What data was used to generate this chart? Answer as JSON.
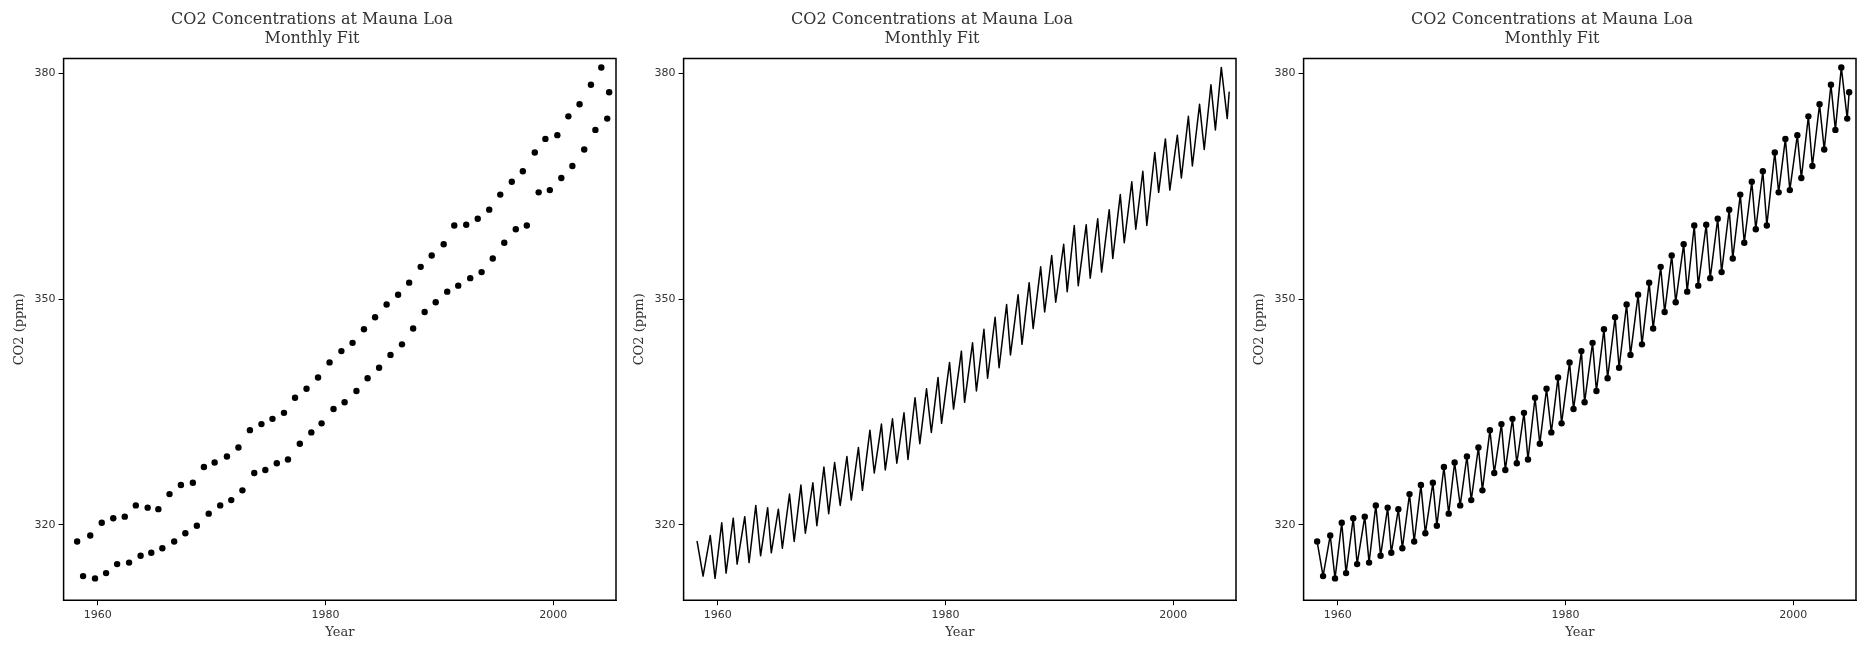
{
  "chart_data": [
    {
      "type": "scatter",
      "title": "CO2 Concentrations at Mauna Loa",
      "subtitle": "Monthly Fit",
      "xlabel": "Year",
      "ylabel": "CO2 (ppm)",
      "xlim": [
        1957,
        2005.5
      ],
      "ylim": [
        310,
        382
      ],
      "xticks": [
        1960,
        1980,
        2000
      ],
      "yticks": [
        320,
        350,
        380
      ],
      "grid": false,
      "legend": false,
      "marker": "circle",
      "x": [
        1958.19,
        1958.71,
        1959.34,
        1959.76,
        1960.35,
        1960.73,
        1961.36,
        1961.7,
        1962.37,
        1962.75,
        1963.34,
        1963.76,
        1964.38,
        1964.7,
        1965.32,
        1965.67,
        1966.3,
        1966.71,
        1967.3,
        1967.69,
        1968.35,
        1968.7,
        1969.32,
        1969.74,
        1970.26,
        1970.75,
        1971.34,
        1971.72,
        1972.35,
        1972.7,
        1973.36,
        1973.74,
        1974.37,
        1974.71,
        1975.34,
        1975.72,
        1976.35,
        1976.7,
        1977.32,
        1977.74,
        1978.33,
        1978.75,
        1979.34,
        1979.65,
        1980.35,
        1980.7,
        1981.39,
        1981.67,
        1982.37,
        1982.71,
        1983.37,
        1983.69,
        1984.35,
        1984.7,
        1985.36,
        1985.7,
        1986.37,
        1986.71,
        1987.34,
        1987.69,
        1988.35,
        1988.7,
        1989.32,
        1989.67,
        1990.37,
        1990.68,
        1991.3,
        1991.65,
        1992.35,
        1992.7,
        1993.36,
        1993.7,
        1994.37,
        1994.68,
        1995.34,
        1995.69,
        1996.35,
        1996.7,
        1997.32,
        1997.67,
        1998.37,
        1998.71,
        1999.3,
        1999.69,
        2000.35,
        2000.7,
        2001.32,
        2001.67,
        2002.3,
        2002.71,
        2003.3,
        2003.69,
        2004.21,
        2004.73,
        2004.9
      ],
      "series": [
        {
          "color": "#000000",
          "values": [
            317.8,
            313.2,
            318.6,
            312.9,
            320.3,
            313.6,
            320.9,
            314.8,
            321.1,
            315.0,
            322.6,
            315.9,
            322.3,
            316.3,
            322.1,
            316.9,
            324.1,
            317.8,
            325.3,
            318.9,
            325.6,
            319.9,
            327.7,
            321.5,
            328.3,
            322.6,
            329.1,
            323.3,
            330.3,
            324.6,
            332.6,
            326.9,
            333.4,
            327.3,
            334.1,
            328.2,
            334.9,
            328.7,
            336.9,
            330.8,
            338.1,
            332.3,
            339.6,
            333.5,
            341.6,
            335.4,
            343.1,
            336.3,
            344.2,
            337.8,
            346.0,
            339.5,
            347.6,
            340.9,
            349.3,
            342.6,
            350.6,
            344.0,
            352.2,
            346.1,
            354.3,
            348.3,
            355.8,
            349.6,
            357.3,
            351.0,
            359.8,
            351.8,
            359.9,
            352.8,
            360.7,
            353.6,
            361.9,
            355.4,
            363.9,
            357.5,
            365.6,
            359.3,
            367.0,
            359.8,
            369.5,
            364.2,
            371.3,
            364.5,
            371.8,
            366.1,
            374.3,
            367.7,
            375.9,
            369.9,
            378.5,
            372.5,
            380.8,
            374.0,
            377.5
          ]
        }
      ]
    },
    {
      "type": "line",
      "title": "CO2 Concentrations at Mauna Loa",
      "subtitle": "Monthly Fit",
      "xlabel": "Year",
      "ylabel": "CO2 (ppm)",
      "xlim": [
        1957,
        2005.5
      ],
      "ylim": [
        310,
        382
      ],
      "xticks": [
        1960,
        1980,
        2000
      ],
      "yticks": [
        320,
        350,
        380
      ],
      "grid": false,
      "legend": false,
      "marker": "none",
      "line_style": "solid",
      "x": [
        1958.19,
        1958.71,
        1959.34,
        1959.76,
        1960.35,
        1960.73,
        1961.36,
        1961.7,
        1962.37,
        1962.75,
        1963.34,
        1963.76,
        1964.38,
        1964.7,
        1965.32,
        1965.67,
        1966.3,
        1966.71,
        1967.3,
        1967.69,
        1968.35,
        1968.7,
        1969.32,
        1969.74,
        1970.26,
        1970.75,
        1971.34,
        1971.72,
        1972.35,
        1972.7,
        1973.36,
        1973.74,
        1974.37,
        1974.71,
        1975.34,
        1975.72,
        1976.35,
        1976.7,
        1977.32,
        1977.74,
        1978.33,
        1978.75,
        1979.34,
        1979.65,
        1980.35,
        1980.7,
        1981.39,
        1981.67,
        1982.37,
        1982.71,
        1983.37,
        1983.69,
        1984.35,
        1984.7,
        1985.36,
        1985.7,
        1986.37,
        1986.71,
        1987.34,
        1987.69,
        1988.35,
        1988.7,
        1989.32,
        1989.67,
        1990.37,
        1990.68,
        1991.3,
        1991.65,
        1992.35,
        1992.7,
        1993.36,
        1993.7,
        1994.37,
        1994.68,
        1995.34,
        1995.69,
        1996.35,
        1996.7,
        1997.32,
        1997.67,
        1998.37,
        1998.71,
        1999.3,
        1999.69,
        2000.35,
        2000.7,
        2001.32,
        2001.67,
        2002.3,
        2002.71,
        2003.3,
        2003.69,
        2004.21,
        2004.73,
        2004.9
      ],
      "series": [
        {
          "color": "#000000",
          "values": [
            317.8,
            313.2,
            318.6,
            312.9,
            320.3,
            313.6,
            320.9,
            314.8,
            321.1,
            315.0,
            322.6,
            315.9,
            322.3,
            316.3,
            322.1,
            316.9,
            324.1,
            317.8,
            325.3,
            318.9,
            325.6,
            319.9,
            327.7,
            321.5,
            328.3,
            322.6,
            329.1,
            323.3,
            330.3,
            324.6,
            332.6,
            326.9,
            333.4,
            327.3,
            334.1,
            328.2,
            334.9,
            328.7,
            336.9,
            330.8,
            338.1,
            332.3,
            339.6,
            333.5,
            341.6,
            335.4,
            343.1,
            336.3,
            344.2,
            337.8,
            346.0,
            339.5,
            347.6,
            340.9,
            349.3,
            342.6,
            350.6,
            344.0,
            352.2,
            346.1,
            354.3,
            348.3,
            355.8,
            349.6,
            357.3,
            351.0,
            359.8,
            351.8,
            359.9,
            352.8,
            360.7,
            353.6,
            361.9,
            355.4,
            363.9,
            357.5,
            365.6,
            359.3,
            367.0,
            359.8,
            369.5,
            364.2,
            371.3,
            364.5,
            371.8,
            366.1,
            374.3,
            367.7,
            375.9,
            369.9,
            378.5,
            372.5,
            380.8,
            374.0,
            377.5
          ]
        }
      ]
    },
    {
      "type": "line",
      "title": "CO2 Concentrations at Mauna Loa",
      "subtitle": "Monthly Fit",
      "xlabel": "Year",
      "ylabel": "CO2 (ppm)",
      "xlim": [
        1957,
        2005.5
      ],
      "ylim": [
        310,
        382
      ],
      "xticks": [
        1960,
        1980,
        2000
      ],
      "yticks": [
        320,
        350,
        380
      ],
      "grid": false,
      "legend": false,
      "marker": "circle",
      "line_style": "solid",
      "x": [
        1958.19,
        1958.71,
        1959.34,
        1959.76,
        1960.35,
        1960.73,
        1961.36,
        1961.7,
        1962.37,
        1962.75,
        1963.34,
        1963.76,
        1964.38,
        1964.7,
        1965.32,
        1965.67,
        1966.3,
        1966.71,
        1967.3,
        1967.69,
        1968.35,
        1968.7,
        1969.32,
        1969.74,
        1970.26,
        1970.75,
        1971.34,
        1971.72,
        1972.35,
        1972.7,
        1973.36,
        1973.74,
        1974.37,
        1974.71,
        1975.34,
        1975.72,
        1976.35,
        1976.7,
        1977.32,
        1977.74,
        1978.33,
        1978.75,
        1979.34,
        1979.65,
        1980.35,
        1980.7,
        1981.39,
        1981.67,
        1982.37,
        1982.71,
        1983.37,
        1983.69,
        1984.35,
        1984.7,
        1985.36,
        1985.7,
        1986.37,
        1986.71,
        1987.34,
        1987.69,
        1988.35,
        1988.7,
        1989.32,
        1989.67,
        1990.37,
        1990.68,
        1991.3,
        1991.65,
        1992.35,
        1992.7,
        1993.36,
        1993.7,
        1994.37,
        1994.68,
        1995.34,
        1995.69,
        1996.35,
        1996.7,
        1997.32,
        1997.67,
        1998.37,
        1998.71,
        1999.3,
        1999.69,
        2000.35,
        2000.7,
        2001.32,
        2001.67,
        2002.3,
        2002.71,
        2003.3,
        2003.69,
        2004.21,
        2004.73,
        2004.9
      ],
      "series": [
        {
          "color": "#000000",
          "values": [
            317.8,
            313.2,
            318.6,
            312.9,
            320.3,
            313.6,
            320.9,
            314.8,
            321.1,
            315.0,
            322.6,
            315.9,
            322.3,
            316.3,
            322.1,
            316.9,
            324.1,
            317.8,
            325.3,
            318.9,
            325.6,
            319.9,
            327.7,
            321.5,
            328.3,
            322.6,
            329.1,
            323.3,
            330.3,
            324.6,
            332.6,
            326.9,
            333.4,
            327.3,
            334.1,
            328.2,
            334.9,
            328.7,
            336.9,
            330.8,
            338.1,
            332.3,
            339.6,
            333.5,
            341.6,
            335.4,
            343.1,
            336.3,
            344.2,
            337.8,
            346.0,
            339.5,
            347.6,
            340.9,
            349.3,
            342.6,
            350.6,
            344.0,
            352.2,
            346.1,
            354.3,
            348.3,
            355.8,
            349.6,
            357.3,
            351.0,
            359.8,
            351.8,
            359.9,
            352.8,
            360.7,
            353.6,
            361.9,
            355.4,
            363.9,
            357.5,
            365.6,
            359.3,
            367.0,
            359.8,
            369.5,
            364.2,
            371.3,
            364.5,
            371.8,
            366.1,
            374.3,
            367.7,
            375.9,
            369.9,
            378.5,
            372.5,
            380.8,
            374.0,
            377.5
          ]
        }
      ]
    }
  ]
}
